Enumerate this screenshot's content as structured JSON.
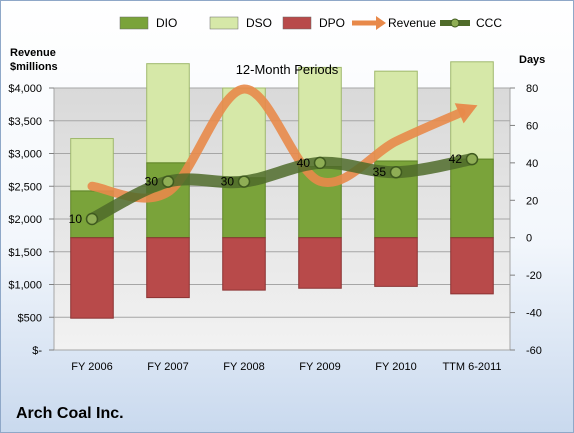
{
  "company": "Arch Coal Inc.",
  "chart_data": {
    "type": "bar",
    "title": "12-Month Periods",
    "categories": [
      "FY 2006",
      "FY 2007",
      "FY 2008",
      "FY 2009",
      "FY 2010",
      "TTM 6-2011"
    ],
    "left_axis": {
      "label_line1": "Revenue",
      "label_line2": "$millions",
      "range": [
        0,
        4000
      ],
      "ticks": [
        "$-",
        "$500",
        "$1,000",
        "$1,500",
        "$2,000",
        "$2,500",
        "$3,000",
        "$3,500",
        "$4,000"
      ]
    },
    "right_axis": {
      "label": "Days",
      "range": [
        -60,
        80
      ],
      "ticks": [
        "-60",
        "-40",
        "-20",
        "0",
        "20",
        "40",
        "60",
        "80"
      ]
    },
    "grid": true,
    "legend_position": "top",
    "series": [
      {
        "name": "DIO",
        "axis": "right",
        "kind": "stacked-bar",
        "color": "#7aa33a",
        "values": [
          25,
          40,
          32,
          38,
          41,
          42
        ]
      },
      {
        "name": "DSO",
        "axis": "right",
        "kind": "stacked-bar",
        "color": "#d6e8a8",
        "values": [
          28,
          53,
          48,
          53,
          48,
          52
        ]
      },
      {
        "name": "DPO",
        "axis": "right",
        "kind": "negative-bar",
        "color": "#b84a4a",
        "values": [
          -43,
          -32,
          -28,
          -27,
          -26,
          -30
        ]
      },
      {
        "name": "Revenue",
        "axis": "left",
        "kind": "line",
        "color": "#e8894a",
        "values": [
          2500,
          2413,
          3984,
          2576,
          3186,
          3700
        ]
      },
      {
        "name": "CCC",
        "axis": "right",
        "kind": "line",
        "color": "#4f6b2a",
        "values": [
          10,
          30,
          30,
          40,
          35,
          42
        ],
        "labels": [
          "10",
          "30",
          "30",
          "40",
          "35",
          "42"
        ]
      }
    ]
  }
}
